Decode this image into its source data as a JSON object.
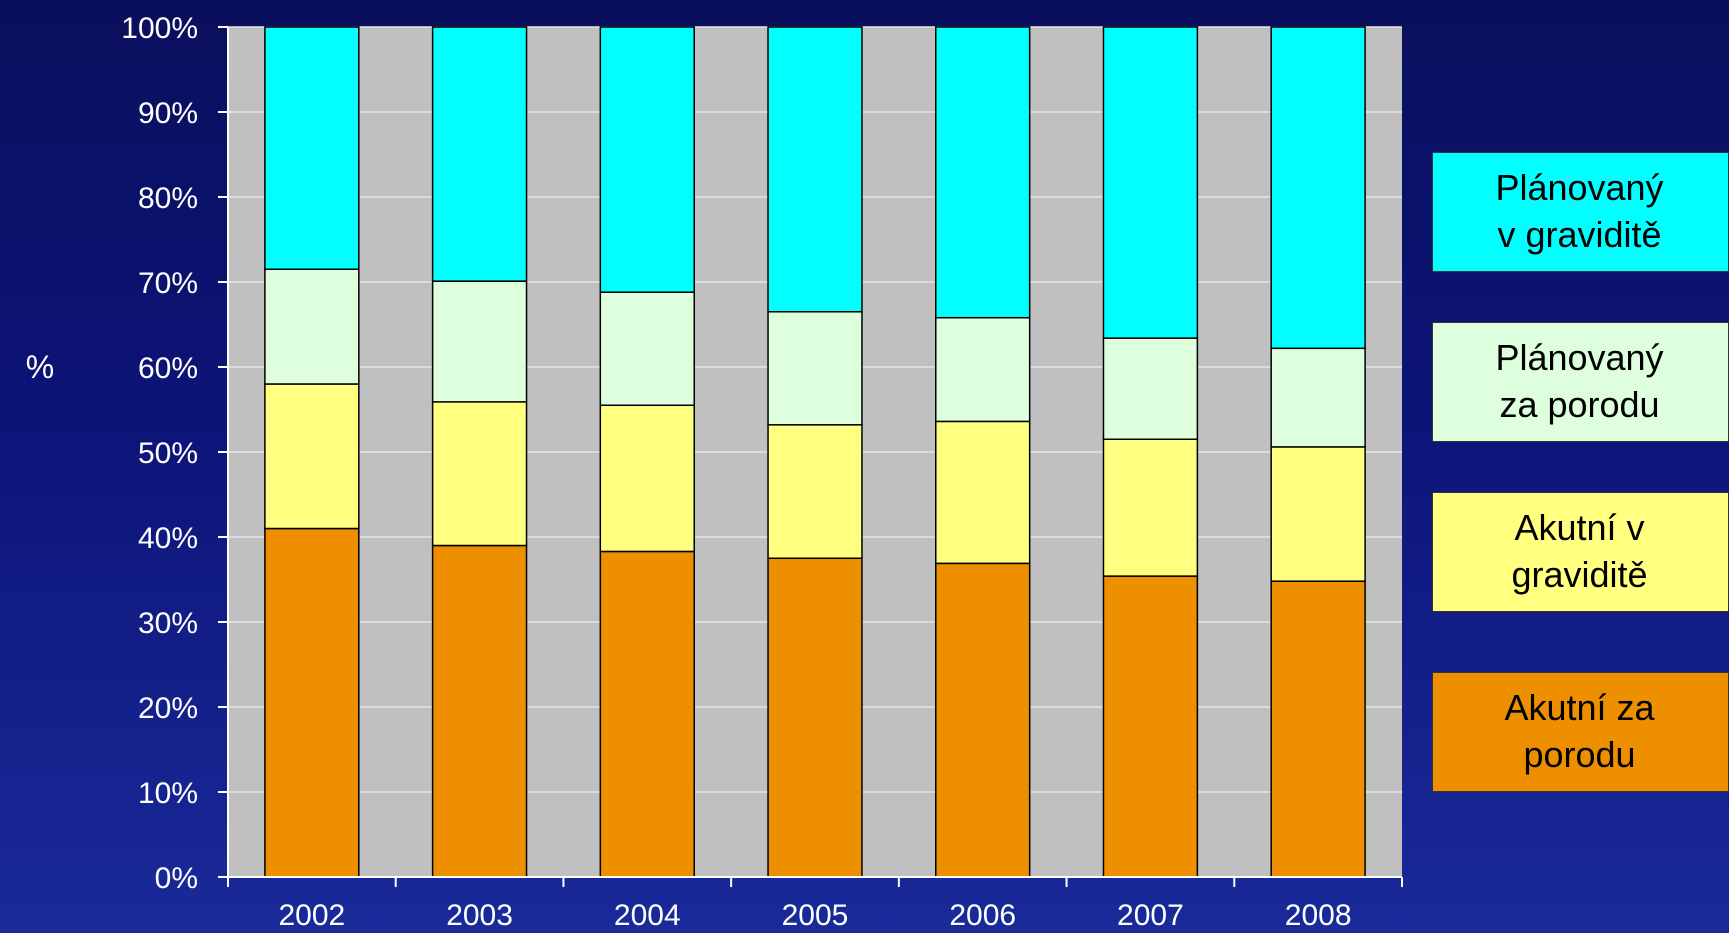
{
  "chart_data": {
    "type": "bar",
    "stacked": true,
    "ylabel": "%",
    "ylim": [
      0,
      100
    ],
    "yticks": [
      "0%",
      "10%",
      "20%",
      "30%",
      "40%",
      "50%",
      "60%",
      "70%",
      "80%",
      "90%",
      "100%"
    ],
    "categories": [
      "2002",
      "2003",
      "2004",
      "2005",
      "2006",
      "2007",
      "2008"
    ],
    "series": [
      {
        "name": "Akutní za porodu",
        "color": "#ee8f00",
        "values": [
          41,
          39,
          38.3,
          37.5,
          36.9,
          35.4,
          34.8
        ]
      },
      {
        "name": "Akutní v graviditě",
        "color": "#ffff80",
        "values": [
          17,
          16.9,
          17.2,
          15.7,
          16.7,
          16.1,
          15.8
        ]
      },
      {
        "name": "Plánovaný za porodu",
        "color": "#ddffdd",
        "values": [
          13.5,
          14.2,
          13.3,
          13.3,
          12.2,
          11.9,
          11.6
        ]
      },
      {
        "name": "Plánovaný v graviditě",
        "color": "#00ffff",
        "values": [
          28.5,
          29.9,
          31.2,
          33.5,
          34.2,
          36.6,
          37.8
        ]
      }
    ],
    "plot_background": "#c0c0c0",
    "grid": true,
    "legend_position": "right"
  },
  "legend": [
    {
      "line1": "Plánovaný",
      "line2": "v graviditě",
      "color": "#00ffff"
    },
    {
      "line1": "Plánovaný",
      "line2": "za porodu",
      "color": "#ddffdd"
    },
    {
      "line1": "Akutní v",
      "line2": "graviditě",
      "color": "#ffff80"
    },
    {
      "line1": "Akutní za",
      "line2": "porodu",
      "color": "#ee8f00"
    }
  ]
}
